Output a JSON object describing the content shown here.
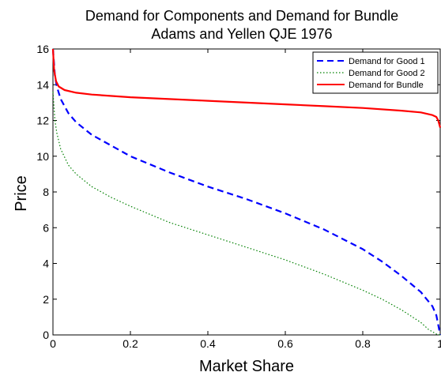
{
  "chart_data": {
    "type": "line",
    "title": [
      "Demand for Components and Demand for Bundle",
      "Adams and Yellen QJE 1976"
    ],
    "xlabel": "Market Share",
    "ylabel": "Price",
    "xlim": [
      0,
      1
    ],
    "ylim": [
      0,
      16
    ],
    "x_ticks": [
      0,
      0.2,
      0.4,
      0.6,
      0.8,
      1
    ],
    "y_ticks": [
      0,
      2,
      4,
      6,
      8,
      10,
      12,
      14,
      16
    ],
    "x_tick_labels": [
      "0",
      "0.2",
      "0.4",
      "0.6",
      "0.8",
      "1"
    ],
    "y_tick_labels": [
      "0",
      "2",
      "4",
      "6",
      "8",
      "10",
      "12",
      "14",
      "16"
    ],
    "grid": false,
    "legend_position": "top-right",
    "series": [
      {
        "name": "Demand for Good 1",
        "color": "#0000ff",
        "style": "dashed",
        "x": [
          0,
          0.005,
          0.01,
          0.02,
          0.04,
          0.06,
          0.1,
          0.15,
          0.2,
          0.3,
          0.4,
          0.5,
          0.6,
          0.7,
          0.8,
          0.85,
          0.9,
          0.95,
          0.98,
          0.99,
          1.0
        ],
        "y": [
          16,
          14.5,
          13.9,
          13.2,
          12.4,
          11.9,
          11.2,
          10.6,
          10.0,
          9.1,
          8.3,
          7.6,
          6.8,
          5.9,
          4.8,
          4.1,
          3.3,
          2.4,
          1.6,
          1.1,
          0
        ]
      },
      {
        "name": "Demand for Good 2",
        "color": "#008000",
        "style": "dotted",
        "x": [
          0,
          0.005,
          0.01,
          0.02,
          0.04,
          0.06,
          0.1,
          0.15,
          0.2,
          0.3,
          0.4,
          0.5,
          0.6,
          0.7,
          0.8,
          0.85,
          0.9,
          0.95,
          0.97,
          0.99,
          1.0
        ],
        "y": [
          13.6,
          12.0,
          11.3,
          10.4,
          9.5,
          9.0,
          8.3,
          7.7,
          7.2,
          6.3,
          5.6,
          4.9,
          4.2,
          3.4,
          2.5,
          2.0,
          1.4,
          0.7,
          0.3,
          0.05,
          0
        ]
      },
      {
        "name": "Demand for Bundle",
        "color": "#ff0000",
        "style": "solid",
        "x": [
          0,
          0.003,
          0.008,
          0.015,
          0.03,
          0.06,
          0.1,
          0.2,
          0.3,
          0.4,
          0.5,
          0.6,
          0.7,
          0.8,
          0.9,
          0.95,
          0.98,
          0.99,
          0.995,
          1.0
        ],
        "y": [
          16,
          14.8,
          14.2,
          13.9,
          13.7,
          13.55,
          13.45,
          13.3,
          13.2,
          13.1,
          13.0,
          12.9,
          12.8,
          12.7,
          12.55,
          12.45,
          12.3,
          12.2,
          12.0,
          11.6
        ]
      }
    ]
  }
}
